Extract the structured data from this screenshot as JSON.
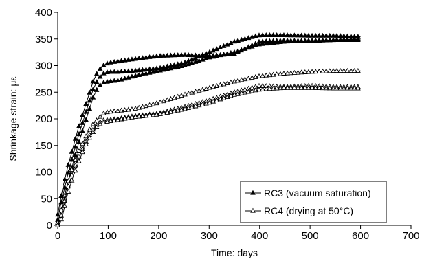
{
  "chart_data": {
    "type": "line",
    "title": "",
    "xlabel": "Time: days",
    "ylabel": "Shrinkage strain: με",
    "xlim": [
      0,
      700
    ],
    "ylim": [
      0,
      400
    ],
    "xticks": [
      "0",
      "100",
      "200",
      "300",
      "400",
      "500",
      "600",
      "700"
    ],
    "yticks": [
      "0",
      "50",
      "100",
      "150",
      "200",
      "250",
      "300",
      "350",
      "400"
    ],
    "grid": false,
    "legend_position": "bottom-right",
    "legend": [
      {
        "label": "RC3 (vacuum saturation)",
        "marker": "filled-triangle",
        "color": "#000000"
      },
      {
        "label": "RC4 (drying at 50°C)",
        "marker": "open-triangle",
        "color": "#000000"
      }
    ],
    "series": [
      {
        "group": "RC3",
        "marker": "filled-triangle",
        "x": [
          0,
          5,
          10,
          20,
          30,
          40,
          50,
          60,
          70,
          80,
          90,
          100,
          120,
          150,
          200,
          250,
          300,
          350,
          400,
          450,
          500,
          550,
          600
        ],
        "y": [
          20,
          45,
          70,
          110,
          145,
          180,
          210,
          240,
          270,
          290,
          300,
          305,
          308,
          312,
          318,
          320,
          318,
          322,
          345,
          347,
          346,
          348,
          348
        ]
      },
      {
        "group": "RC3",
        "marker": "filled-triangle",
        "x": [
          0,
          5,
          10,
          20,
          30,
          40,
          50,
          60,
          70,
          80,
          90,
          100,
          120,
          150,
          200,
          250,
          300,
          350,
          400,
          450,
          500,
          550,
          600
        ],
        "y": [
          10,
          35,
          55,
          95,
          130,
          165,
          195,
          225,
          255,
          275,
          285,
          288,
          288,
          290,
          295,
          305,
          325,
          345,
          357,
          357,
          356,
          356,
          354
        ]
      },
      {
        "group": "RC3",
        "marker": "filled-triangle",
        "x": [
          0,
          5,
          10,
          20,
          30,
          40,
          50,
          60,
          70,
          80,
          90,
          100,
          120,
          150,
          200,
          250,
          300,
          350,
          400,
          450,
          500,
          550,
          600
        ],
        "y": [
          5,
          20,
          40,
          80,
          115,
          150,
          180,
          210,
          240,
          260,
          268,
          270,
          272,
          280,
          290,
          300,
          315,
          325,
          340,
          345,
          347,
          348,
          350
        ]
      },
      {
        "group": "RC4",
        "marker": "open-triangle",
        "x": [
          0,
          5,
          10,
          20,
          30,
          40,
          50,
          60,
          70,
          80,
          90,
          100,
          120,
          150,
          200,
          250,
          300,
          350,
          400,
          450,
          500,
          550,
          600
        ],
        "y": [
          5,
          20,
          40,
          80,
          110,
          135,
          155,
          175,
          190,
          200,
          210,
          213,
          215,
          218,
          230,
          245,
          258,
          270,
          280,
          285,
          288,
          290,
          290
        ]
      },
      {
        "group": "RC4",
        "marker": "open-triangle",
        "x": [
          0,
          5,
          10,
          20,
          30,
          40,
          50,
          60,
          70,
          80,
          90,
          100,
          120,
          150,
          200,
          250,
          300,
          350,
          400,
          450,
          500,
          550,
          600
        ],
        "y": [
          0,
          10,
          30,
          70,
          100,
          125,
          145,
          165,
          180,
          192,
          197,
          198,
          200,
          205,
          210,
          222,
          235,
          250,
          262,
          260,
          262,
          260,
          260
        ]
      },
      {
        "group": "RC4",
        "marker": "open-triangle",
        "x": [
          0,
          5,
          10,
          20,
          30,
          40,
          50,
          60,
          70,
          80,
          90,
          100,
          120,
          150,
          200,
          250,
          300,
          350,
          400,
          450,
          500,
          550,
          600
        ],
        "y": [
          0,
          5,
          20,
          60,
          90,
          115,
          140,
          160,
          175,
          188,
          193,
          195,
          198,
          203,
          208,
          218,
          230,
          245,
          255,
          258,
          258,
          257,
          257
        ]
      }
    ]
  }
}
